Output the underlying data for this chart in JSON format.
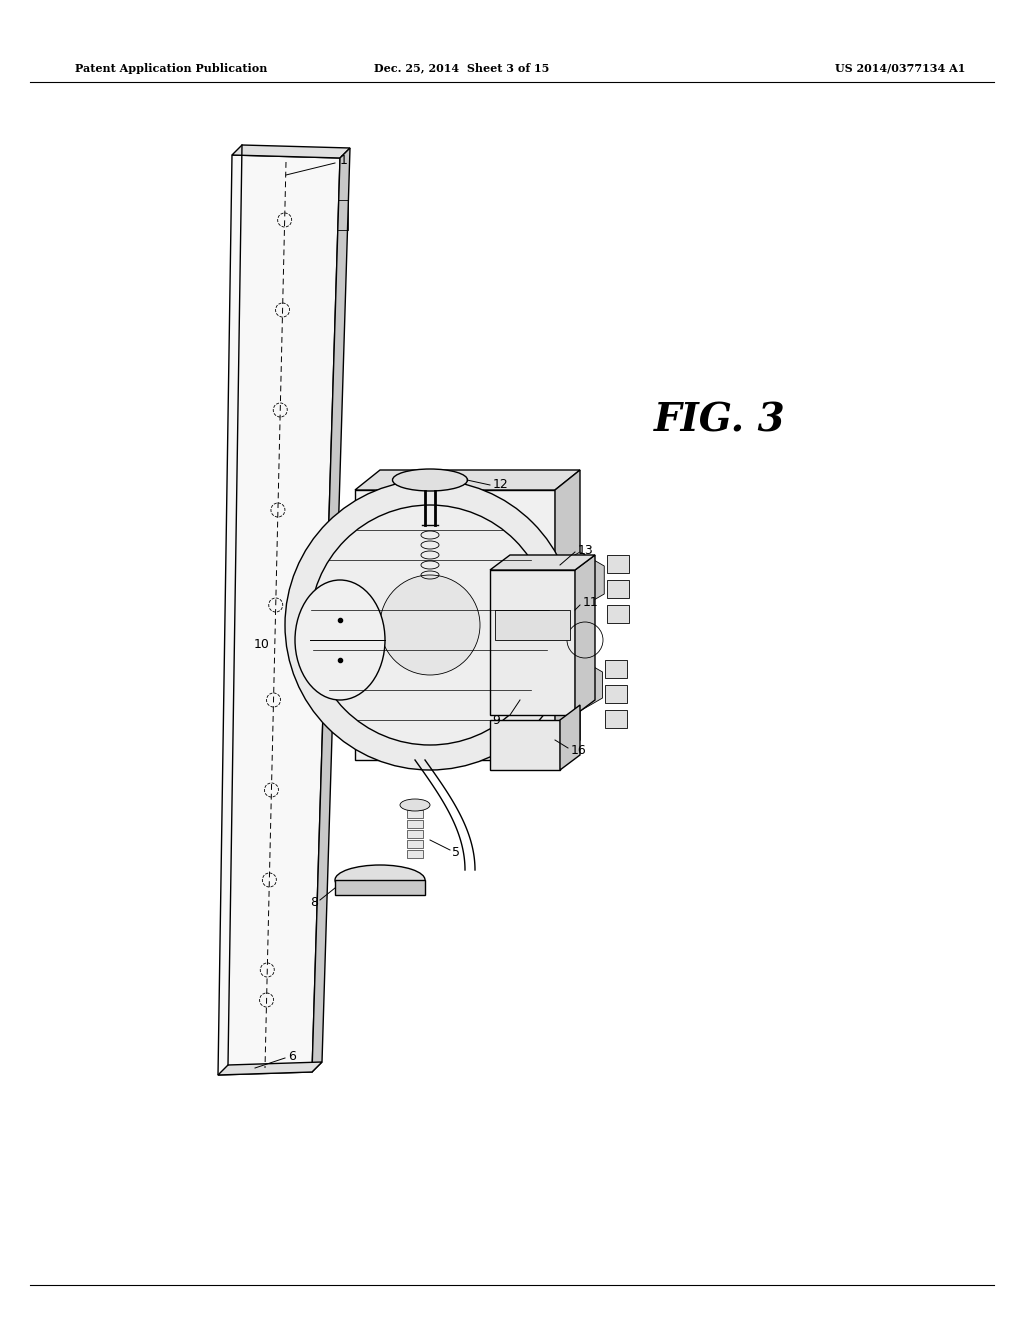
{
  "bg_color": "#ffffff",
  "page_width": 10.24,
  "page_height": 13.2,
  "header_left": "Patent Application Publication",
  "header_center": "Dec. 25, 2014  Sheet 3 of 15",
  "header_right": "US 2014/0377134 A1",
  "fig_label": "FIG. 3",
  "line_color": "#000000",
  "fill_light": "#f2f2f2",
  "fill_mid": "#e0e0e0",
  "fill_dark": "#c8c8c8",
  "lw_main": 1.0,
  "lw_thin": 0.6,
  "lw_thick": 1.4
}
